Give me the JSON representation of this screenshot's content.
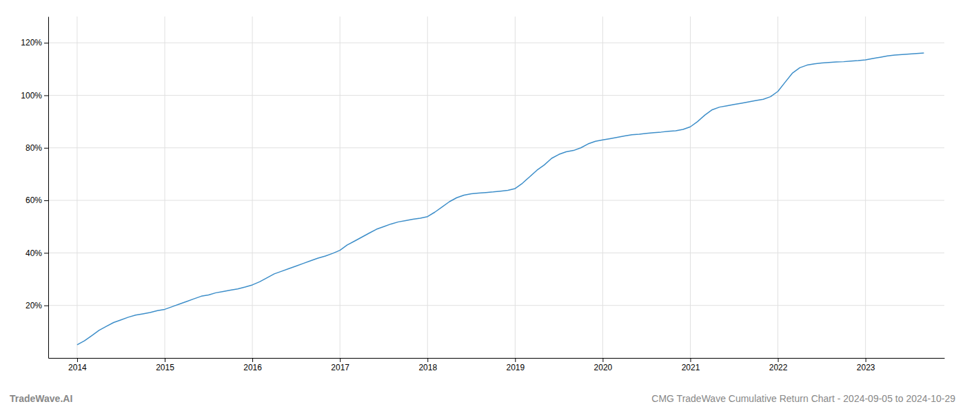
{
  "chart_data": {
    "type": "line",
    "title": "CMG TradeWave Cumulative Return Chart - 2024-09-05 to 2024-10-29",
    "annotations": [
      "TradeWave.AI"
    ],
    "color": "#3d8ec9",
    "grid": true,
    "x": [
      2014.0,
      2014.083,
      2014.167,
      2014.25,
      2014.333,
      2014.417,
      2014.5,
      2014.583,
      2014.667,
      2014.75,
      2014.833,
      2014.917,
      2015.0,
      2015.083,
      2015.167,
      2015.25,
      2015.333,
      2015.417,
      2015.5,
      2015.583,
      2015.667,
      2015.75,
      2015.833,
      2015.917,
      2016.0,
      2016.083,
      2016.167,
      2016.25,
      2016.333,
      2016.417,
      2016.5,
      2016.583,
      2016.667,
      2016.75,
      2016.833,
      2016.917,
      2017.0,
      2017.083,
      2017.167,
      2017.25,
      2017.333,
      2017.417,
      2017.5,
      2017.583,
      2017.667,
      2017.75,
      2017.833,
      2017.917,
      2018.0,
      2018.083,
      2018.167,
      2018.25,
      2018.333,
      2018.417,
      2018.5,
      2018.583,
      2018.667,
      2018.75,
      2018.833,
      2018.917,
      2019.0,
      2019.083,
      2019.167,
      2019.25,
      2019.333,
      2019.417,
      2019.5,
      2019.583,
      2019.667,
      2019.75,
      2019.833,
      2019.917,
      2020.0,
      2020.083,
      2020.167,
      2020.25,
      2020.333,
      2020.417,
      2020.5,
      2020.583,
      2020.667,
      2020.75,
      2020.833,
      2020.917,
      2021.0,
      2021.083,
      2021.167,
      2021.25,
      2021.333,
      2021.417,
      2021.5,
      2021.583,
      2021.667,
      2021.75,
      2021.833,
      2021.917,
      2022.0,
      2022.083,
      2022.167,
      2022.25,
      2022.333,
      2022.417,
      2022.5,
      2022.583,
      2022.667,
      2022.75,
      2022.833,
      2022.917,
      2023.0,
      2023.083,
      2023.167,
      2023.25,
      2023.333,
      2023.417,
      2023.5,
      2023.583,
      2023.667
    ],
    "values": [
      5.0,
      6.5,
      8.5,
      10.5,
      12.0,
      13.5,
      14.5,
      15.5,
      16.3,
      16.8,
      17.3,
      18.0,
      18.5,
      19.5,
      20.5,
      21.5,
      22.5,
      23.5,
      24.0,
      24.8,
      25.3,
      25.8,
      26.3,
      27.0,
      27.8,
      29.0,
      30.5,
      32.0,
      33.0,
      34.0,
      35.0,
      36.0,
      37.0,
      38.0,
      38.8,
      39.8,
      41.0,
      43.0,
      44.5,
      46.0,
      47.5,
      49.0,
      50.0,
      51.0,
      51.8,
      52.3,
      52.8,
      53.2,
      53.8,
      55.5,
      57.5,
      59.5,
      61.0,
      62.0,
      62.5,
      62.8,
      63.0,
      63.2,
      63.5,
      63.8,
      64.5,
      66.5,
      69.0,
      71.5,
      73.5,
      76.0,
      77.5,
      78.5,
      79.0,
      80.0,
      81.5,
      82.5,
      83.0,
      83.5,
      84.0,
      84.5,
      85.0,
      85.2,
      85.5,
      85.8,
      86.0,
      86.3,
      86.5,
      87.0,
      88.0,
      90.0,
      92.5,
      94.5,
      95.5,
      96.0,
      96.5,
      97.0,
      97.5,
      98.0,
      98.5,
      99.5,
      101.5,
      105.0,
      108.5,
      110.5,
      111.5,
      112.0,
      112.3,
      112.5,
      112.7,
      112.8,
      113.0,
      113.2,
      113.5,
      114.0,
      114.5,
      115.0,
      115.3,
      115.5,
      115.7,
      115.9,
      116.1
    ],
    "xlim": [
      2013.67,
      2023.9
    ],
    "xticks": [
      2014,
      2015,
      2016,
      2017,
      2018,
      2019,
      2020,
      2021,
      2022,
      2023
    ],
    "ylim": [
      0,
      130
    ],
    "yticks": [
      {
        "value": 20,
        "label": "20%"
      },
      {
        "value": 40,
        "label": "40%"
      },
      {
        "value": 60,
        "label": "60%"
      },
      {
        "value": 80,
        "label": "80%"
      },
      {
        "value": 100,
        "label": "100%"
      },
      {
        "value": 120,
        "label": "120%"
      }
    ]
  }
}
